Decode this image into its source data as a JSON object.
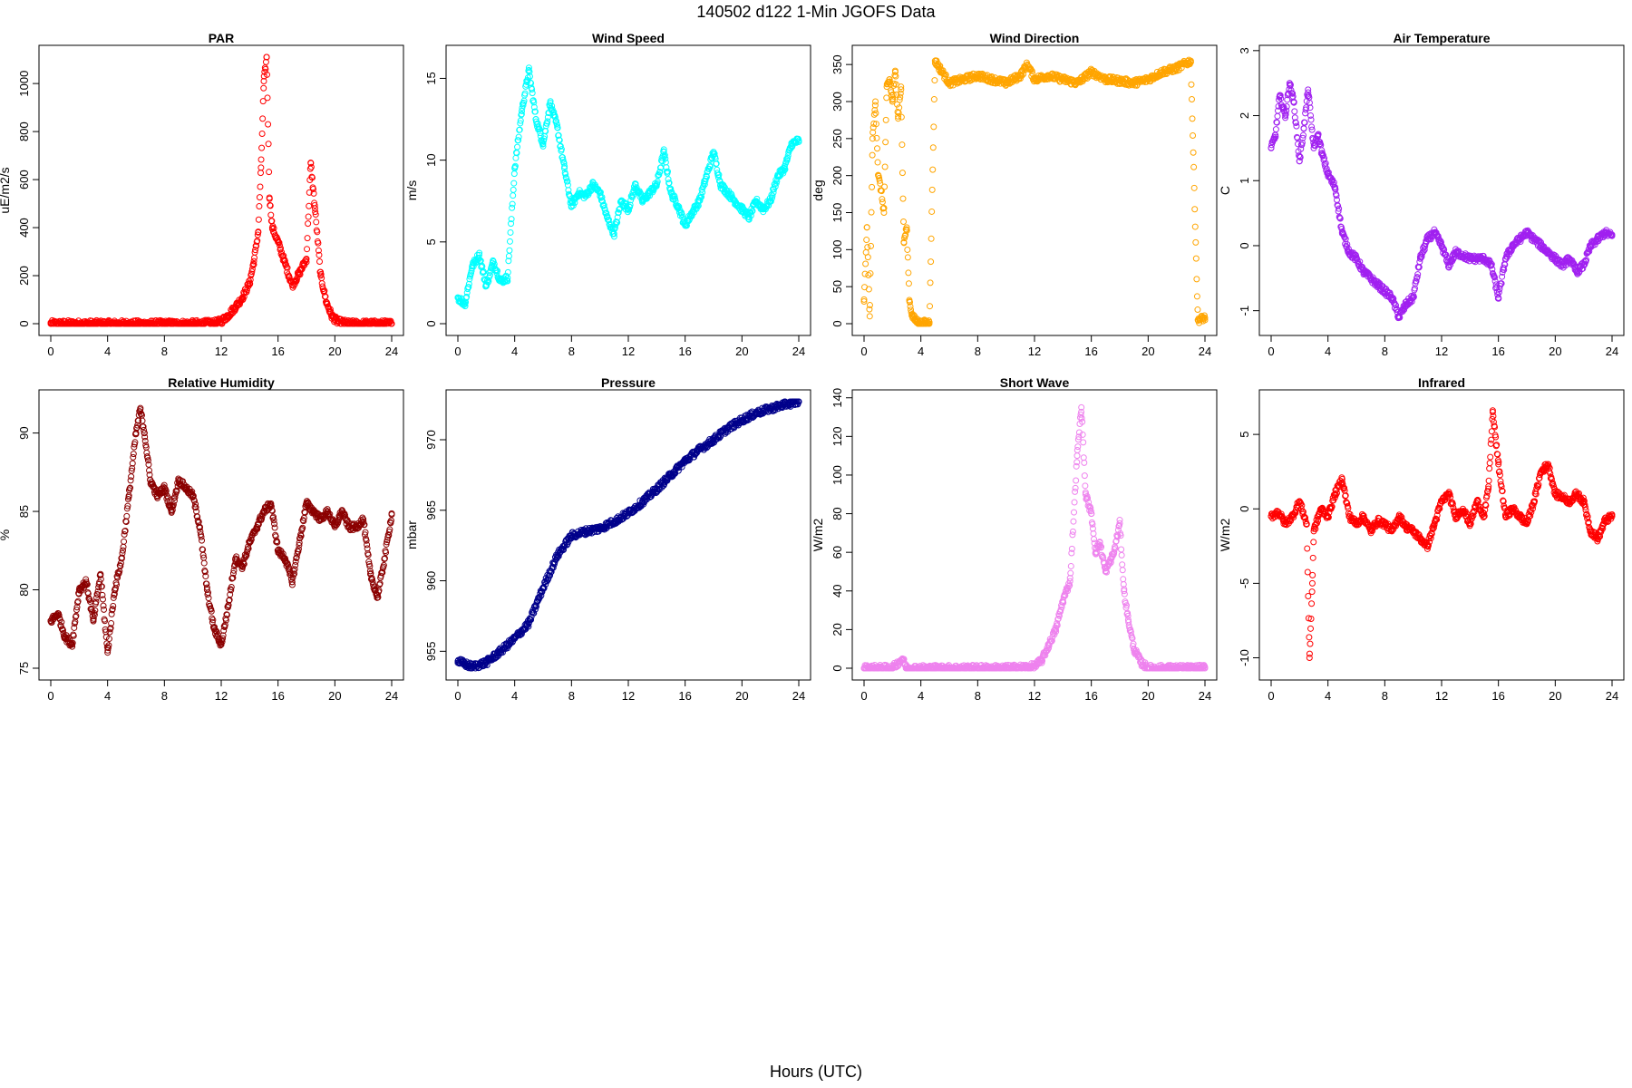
{
  "figure": {
    "title": "140502   d122   1-Min  JGOFS Data",
    "xlabel": "Hours (UTC)"
  },
  "chart_data": [
    {
      "type": "scatter",
      "title": "PAR",
      "ylabel": "uE/m2/s",
      "color": "#ff0000",
      "xlim": [
        0,
        24
      ],
      "ylim": [
        0,
        1110
      ],
      "xticks": [
        0,
        4,
        8,
        12,
        16,
        20,
        24
      ],
      "yticks": [
        0,
        200,
        400,
        600,
        800,
        1000
      ],
      "x": [
        0,
        2,
        4,
        6,
        8,
        10,
        11.5,
        12,
        12.5,
        13,
        13.5,
        14,
        14.3,
        14.6,
        14.8,
        15,
        15.2,
        15.4,
        15.6,
        16,
        16.5,
        17,
        17.5,
        18,
        18.3,
        18.6,
        19,
        19.4,
        19.8,
        20.2,
        21,
        22,
        24
      ],
      "y": [
        0,
        0,
        0,
        0,
        0,
        0,
        2,
        10,
        35,
        70,
        110,
        170,
        260,
        380,
        650,
        1010,
        1110,
        520,
        400,
        340,
        250,
        160,
        210,
        270,
        670,
        480,
        200,
        90,
        30,
        8,
        0,
        0,
        0
      ]
    },
    {
      "type": "scatter",
      "title": "Wind Speed",
      "ylabel": "m/s",
      "color": "#00ffff",
      "xlim": [
        0,
        24
      ],
      "ylim": [
        0,
        16.3
      ],
      "xticks": [
        0,
        4,
        8,
        12,
        16,
        20,
        24
      ],
      "yticks": [
        0,
        5,
        10,
        15
      ],
      "x": [
        0,
        0.5,
        1,
        1.5,
        2,
        2.5,
        3,
        3.5,
        4,
        4.5,
        5,
        5.5,
        6,
        6.5,
        7,
        7.5,
        8,
        8.5,
        9,
        9.5,
        10,
        10.5,
        11,
        11.5,
        12,
        12.5,
        13,
        13.5,
        14,
        14.5,
        15,
        15.5,
        16,
        16.5,
        17,
        17.5,
        18,
        18.5,
        19,
        19.5,
        20,
        20.5,
        21,
        21.5,
        22,
        22.5,
        23,
        23.5,
        24
      ],
      "y": [
        1.6,
        1.2,
        3.5,
        4.2,
        2.3,
        3.8,
        2.6,
        2.8,
        9.5,
        13.0,
        15.5,
        12.5,
        11.0,
        13.5,
        12.0,
        9.5,
        7.2,
        8.0,
        7.8,
        8.5,
        8.0,
        6.5,
        5.5,
        7.5,
        7.0,
        8.5,
        7.5,
        8.0,
        8.5,
        10.5,
        8.0,
        7.2,
        6.0,
        6.8,
        7.5,
        9.0,
        10.5,
        8.5,
        8.0,
        7.5,
        7.0,
        6.5,
        7.5,
        7.0,
        7.5,
        9.0,
        9.5,
        11.0,
        11.2
      ]
    },
    {
      "type": "scatter",
      "title": "Wind Direction",
      "ylabel": "deg",
      "color": "#ffa500",
      "xlim": [
        0,
        24
      ],
      "ylim": [
        0,
        360
      ],
      "xticks": [
        0,
        4,
        8,
        12,
        16,
        20,
        24
      ],
      "yticks": [
        0,
        50,
        100,
        150,
        200,
        250,
        300,
        350
      ],
      "x": [
        0,
        0.2,
        0.4,
        0.6,
        0.8,
        1.0,
        1.2,
        1.4,
        1.6,
        1.8,
        2.0,
        2.2,
        2.4,
        2.6,
        2.8,
        3.0,
        3.2,
        3.4,
        3.6,
        3.8,
        4.0,
        4.3,
        4.6,
        5,
        6,
        7,
        8,
        9,
        10,
        11,
        11.5,
        12,
        13,
        14,
        15,
        16,
        17,
        18,
        19,
        20,
        21,
        22,
        23,
        23.5,
        24
      ],
      "y": [
        30,
        130,
        10,
        250,
        300,
        200,
        180,
        150,
        320,
        330,
        300,
        340,
        280,
        320,
        110,
        130,
        30,
        10,
        5,
        3,
        0,
        1,
        2,
        355,
        325,
        330,
        335,
        330,
        325,
        335,
        350,
        330,
        335,
        330,
        325,
        340,
        330,
        328,
        325,
        330,
        340,
        345,
        355,
        5,
        8
      ]
    },
    {
      "type": "scatter",
      "title": "Air Temperature",
      "ylabel": "C",
      "color": "#a020f0",
      "xlim": [
        0,
        24
      ],
      "ylim": [
        -1.2,
        2.9
      ],
      "xticks": [
        0,
        4,
        8,
        12,
        16,
        20,
        24
      ],
      "yticks": [
        -1,
        0,
        1,
        2,
        3
      ],
      "x": [
        0,
        0.3,
        0.6,
        1.0,
        1.3,
        1.6,
        2.0,
        2.3,
        2.6,
        3.0,
        3.3,
        3.6,
        4.0,
        4.5,
        5.0,
        5.5,
        6.0,
        6.5,
        7.0,
        7.5,
        8.0,
        8.5,
        9.0,
        9.5,
        10.0,
        10.5,
        11.0,
        11.5,
        12.0,
        12.5,
        13,
        14,
        15,
        15.5,
        16,
        16.5,
        17,
        17.5,
        18,
        18.5,
        19,
        19.5,
        20,
        20.5,
        21,
        21.5,
        22,
        22.5,
        23,
        23.5,
        24
      ],
      "y": [
        1.5,
        1.7,
        2.3,
        2.0,
        2.5,
        2.2,
        1.3,
        1.8,
        2.4,
        1.5,
        1.7,
        1.4,
        1.1,
        0.9,
        0.2,
        -0.1,
        -0.2,
        -0.4,
        -0.5,
        -0.6,
        -0.7,
        -0.8,
        -1.1,
        -0.9,
        -0.8,
        -0.2,
        0.1,
        0.2,
        0.0,
        -0.3,
        -0.1,
        -0.2,
        -0.2,
        -0.3,
        -0.8,
        -0.2,
        0.0,
        0.1,
        0.2,
        0.1,
        0.0,
        -0.1,
        -0.2,
        -0.3,
        -0.2,
        -0.4,
        -0.3,
        0.0,
        0.1,
        0.2,
        0.15
      ]
    },
    {
      "type": "scatter",
      "title": "Relative Humidity",
      "ylabel": "%",
      "color": "#8b0000",
      "xlim": [
        0,
        24
      ],
      "ylim": [
        75,
        92
      ],
      "xticks": [
        0,
        4,
        8,
        12,
        16,
        20,
        24
      ],
      "yticks": [
        75,
        80,
        85,
        90
      ],
      "x": [
        0,
        0.5,
        1.0,
        1.5,
        2.0,
        2.5,
        3.0,
        3.5,
        4.0,
        4.5,
        5.0,
        5.5,
        6.0,
        6.3,
        6.6,
        7.0,
        7.5,
        8.0,
        8.5,
        9.0,
        9.5,
        10.0,
        10.5,
        11.0,
        11.5,
        12.0,
        12.5,
        13.0,
        13.5,
        14.0,
        14.5,
        15.0,
        15.5,
        16.0,
        16.5,
        17.0,
        17.5,
        18.0,
        18.5,
        19.0,
        19.5,
        20.0,
        20.5,
        21.0,
        21.5,
        22.0,
        22.5,
        23.0,
        23.5,
        24.0
      ],
      "y": [
        78,
        78.5,
        77,
        76.5,
        80,
        80.5,
        78,
        81,
        76,
        80,
        82,
        86,
        90,
        91.5,
        90,
        87,
        86,
        86.5,
        85,
        87,
        86.5,
        86,
        84,
        80,
        77.5,
        76.5,
        79,
        82,
        81.5,
        83,
        84,
        85,
        85.5,
        82.5,
        82,
        80.5,
        83,
        85.5,
        85,
        84.5,
        85,
        84,
        85,
        84,
        84,
        84.5,
        81,
        79.5,
        82,
        84.8
      ]
    },
    {
      "type": "scatter",
      "title": "Pressure",
      "ylabel": "mbar",
      "color": "#00008b",
      "xlim": [
        0,
        24
      ],
      "ylim": [
        953.8,
        972.7
      ],
      "xticks": [
        0,
        4,
        8,
        12,
        16,
        20,
        24
      ],
      "yticks": [
        955,
        960,
        965,
        970
      ],
      "x": [
        0,
        1,
        2,
        3,
        4,
        5,
        6,
        7,
        8,
        9,
        10,
        11,
        12,
        13,
        14,
        15,
        16,
        17,
        18,
        19,
        20,
        21,
        22,
        23,
        24
      ],
      "y": [
        954.3,
        953.9,
        954.2,
        955.0,
        955.9,
        957.0,
        959.5,
        961.8,
        963.2,
        963.5,
        963.7,
        964.2,
        964.8,
        965.6,
        966.5,
        967.5,
        968.5,
        969.3,
        970.0,
        970.8,
        971.4,
        971.9,
        972.2,
        972.5,
        972.7
      ]
    },
    {
      "type": "scatter",
      "title": "Short Wave",
      "ylabel": "W/m2",
      "color": "#ee82ee",
      "xlim": [
        0,
        24
      ],
      "ylim": [
        0,
        138
      ],
      "xticks": [
        0,
        4,
        8,
        12,
        16,
        20,
        24
      ],
      "yticks": [
        0,
        20,
        40,
        60,
        80,
        100,
        120,
        140
      ],
      "x": [
        0,
        2,
        2.7,
        3,
        4,
        6,
        8,
        10,
        11.5,
        12,
        12.5,
        13,
        13.5,
        14,
        14.5,
        15,
        15.3,
        15.6,
        16,
        16.3,
        16.6,
        17,
        17.3,
        17.6,
        18,
        18.3,
        18.6,
        19,
        19.5,
        20,
        21,
        22,
        23,
        24
      ],
      "y": [
        0,
        0,
        5,
        0,
        0,
        0,
        0,
        0,
        0.5,
        1,
        4,
        12,
        20,
        35,
        45,
        110,
        135,
        90,
        80,
        60,
        65,
        50,
        55,
        60,
        75,
        40,
        25,
        10,
        3,
        0,
        0,
        0,
        0,
        0
      ]
    },
    {
      "type": "scatter",
      "title": "Infrared",
      "ylabel": "W/m2",
      "color": "#ff0000",
      "xlim": [
        0,
        24
      ],
      "ylim": [
        -10.7,
        7.2
      ],
      "xticks": [
        0,
        4,
        8,
        12,
        16,
        20,
        24
      ],
      "yticks": [
        -10,
        -5,
        0,
        5
      ],
      "x": [
        0,
        0.5,
        1,
        1.5,
        2,
        2.5,
        2.7,
        2.9,
        3,
        3.5,
        4,
        4.5,
        5,
        5.5,
        6,
        6.5,
        7,
        7.5,
        8,
        8.5,
        9,
        9.5,
        10,
        10.5,
        11,
        11.5,
        12,
        12.5,
        13,
        13.5,
        14,
        14.5,
        15,
        15.3,
        15.6,
        16,
        16.5,
        17,
        17.5,
        18,
        18.5,
        19,
        19.5,
        20,
        20.5,
        21,
        21.5,
        22,
        22.5,
        23,
        23.5,
        24
      ],
      "y": [
        -0.5,
        -0.2,
        -1.0,
        -0.5,
        0.5,
        -1.0,
        -10,
        -5,
        -1.5,
        0,
        -0.5,
        1.0,
        2.0,
        -0.5,
        -1.0,
        -0.5,
        -1.5,
        -0.8,
        -1.0,
        -1.5,
        -0.5,
        -1.2,
        -1.5,
        -2.0,
        -2.5,
        -1.0,
        0.5,
        1.0,
        -0.5,
        0.0,
        -1.0,
        0.5,
        -0.5,
        1.5,
        6.5,
        3.0,
        -0.5,
        0.0,
        -0.5,
        -1.0,
        0.5,
        2.5,
        3.0,
        1.0,
        0.8,
        0.5,
        1.0,
        0.5,
        -1.5,
        -2.0,
        -0.8,
        -0.5
      ]
    }
  ]
}
